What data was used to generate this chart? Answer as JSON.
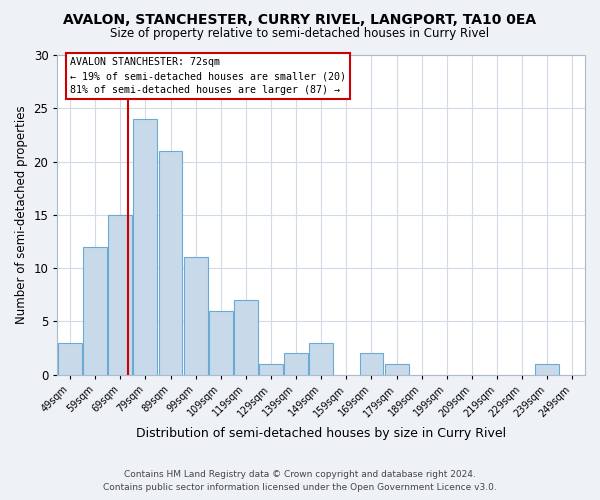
{
  "title": "AVALON, STANCHESTER, CURRY RIVEL, LANGPORT, TA10 0EA",
  "subtitle": "Size of property relative to semi-detached houses in Curry Rivel",
  "xlabel": "Distribution of semi-detached houses by size in Curry Rivel",
  "ylabel": "Number of semi-detached properties",
  "bins": [
    "49sqm",
    "59sqm",
    "69sqm",
    "79sqm",
    "89sqm",
    "99sqm",
    "109sqm",
    "119sqm",
    "129sqm",
    "139sqm",
    "149sqm",
    "159sqm",
    "169sqm",
    "179sqm",
    "189sqm",
    "199sqm",
    "209sqm",
    "219sqm",
    "229sqm",
    "239sqm",
    "249sqm"
  ],
  "counts": [
    3,
    12,
    15,
    24,
    21,
    11,
    6,
    7,
    1,
    2,
    3,
    0,
    2,
    1,
    0,
    0,
    0,
    0,
    0,
    1,
    0
  ],
  "bin_edges": [
    44,
    54,
    64,
    74,
    84,
    94,
    104,
    114,
    124,
    134,
    144,
    154,
    164,
    174,
    184,
    194,
    204,
    214,
    224,
    234,
    244,
    254
  ],
  "bar_color": "#c8daea",
  "bar_edge_color": "#6aaad4",
  "property_size": 72,
  "vline_color": "#cc0000",
  "annotation_title": "AVALON STANCHESTER: 72sqm",
  "annotation_line1": "← 19% of semi-detached houses are smaller (20)",
  "annotation_line2": "81% of semi-detached houses are larger (87) →",
  "ylim": [
    0,
    30
  ],
  "yticks": [
    0,
    5,
    10,
    15,
    20,
    25,
    30
  ],
  "footer1": "Contains HM Land Registry data © Crown copyright and database right 2024.",
  "footer2": "Contains public sector information licensed under the Open Government Licence v3.0.",
  "bg_color": "#eef2f7",
  "plot_bg_color": "#ffffff",
  "grid_color": "#d0dae8"
}
